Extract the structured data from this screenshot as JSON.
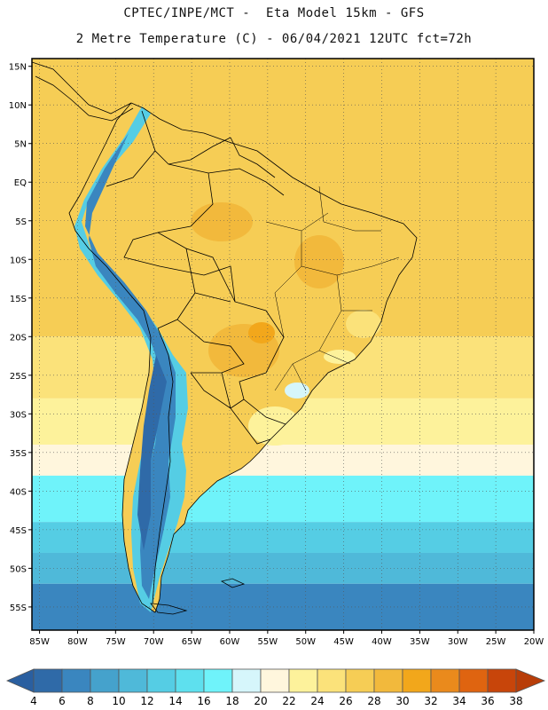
{
  "header": {
    "line1": "CPTEC/INPE/MCT -  Eta Model 15km - GFS",
    "line2": "2 Metre Temperature (C) - 06/04/2021 12UTC fct=72h"
  },
  "map": {
    "lat_labels": [
      "15N",
      "10N",
      "5N",
      "EQ",
      "5S",
      "10S",
      "15S",
      "20S",
      "25S",
      "30S",
      "35S",
      "40S",
      "45S",
      "50S",
      "55S"
    ],
    "lon_labels": [
      "85W",
      "80W",
      "75W",
      "70W",
      "65W",
      "60W",
      "55W",
      "50W",
      "45W",
      "40W",
      "35W",
      "30W",
      "25W",
      "20W"
    ],
    "lat_range": [
      -58,
      16
    ],
    "lon_range": [
      -86,
      -20
    ],
    "ocean_bands": [
      {
        "lat_top": 16,
        "lat_bottom": -20,
        "temp": 26
      },
      {
        "lat_top": -20,
        "lat_bottom": -28,
        "temp": 24
      },
      {
        "lat_top": -28,
        "lat_bottom": -34,
        "temp": 22
      },
      {
        "lat_top": -34,
        "lat_bottom": -38,
        "temp": 20
      },
      {
        "lat_top": -38,
        "lat_bottom": -44,
        "temp": 16
      },
      {
        "lat_top": -44,
        "lat_bottom": -48,
        "temp": 12
      },
      {
        "lat_top": -48,
        "lat_bottom": -52,
        "temp": 10
      },
      {
        "lat_top": -52,
        "lat_bottom": -58,
        "temp": 6
      }
    ]
  },
  "colorbar": {
    "ticks": [
      "4",
      "6",
      "8",
      "10",
      "12",
      "14",
      "16",
      "18",
      "20",
      "22",
      "24",
      "26",
      "28",
      "30",
      "32",
      "34",
      "36",
      "38"
    ],
    "colors": [
      "#2f6aa8",
      "#3a86bf",
      "#45a2cc",
      "#4fb9d9",
      "#55cde4",
      "#5ee0ee",
      "#6ff3fa",
      "#d6f6fb",
      "#fff6dd",
      "#fdf29b",
      "#fbe27a",
      "#f6cd55",
      "#f2b93c",
      "#f2a71b",
      "#ea8a1c",
      "#df6410",
      "#c8450a"
    ],
    "under_color": "#2a5fa0",
    "over_color": "#b83d08"
  }
}
